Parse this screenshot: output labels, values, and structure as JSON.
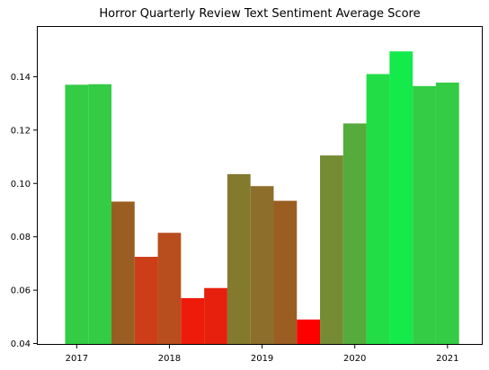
{
  "chart_data": {
    "type": "bar",
    "title": "Horror Quarterly Review Text Sentiment Average Score",
    "xlabel": "",
    "ylabel": "",
    "x_ticks": [
      {
        "label": "2017",
        "value": 2017.0
      },
      {
        "label": "2018",
        "value": 2018.0
      },
      {
        "label": "2019",
        "value": 2019.0
      },
      {
        "label": "2020",
        "value": 2020.0
      },
      {
        "label": "2021",
        "value": 2021.0
      }
    ],
    "y_ticks": [
      0.04,
      0.06,
      0.08,
      0.1,
      0.12,
      0.14
    ],
    "y_tick_labels": [
      "0.04",
      "0.06",
      "0.08",
      "0.10",
      "0.12",
      "0.14"
    ],
    "xlim": [
      2016.57,
      2021.38
    ],
    "ylim": [
      0.0395,
      0.159
    ],
    "bar_width": 0.25,
    "bars": [
      {
        "x": 2017.0,
        "value": 0.137,
        "color": "#33cc44"
      },
      {
        "x": 2017.25,
        "value": 0.1372,
        "color": "#33cc44"
      },
      {
        "x": 2017.5,
        "value": 0.0932,
        "color": "#9a5e22"
      },
      {
        "x": 2017.75,
        "value": 0.0725,
        "color": "#cc3d18"
      },
      {
        "x": 2018.0,
        "value": 0.0815,
        "color": "#b84e1e"
      },
      {
        "x": 2018.25,
        "value": 0.057,
        "color": "#ee1a0a"
      },
      {
        "x": 2018.5,
        "value": 0.0608,
        "color": "#e6200c"
      },
      {
        "x": 2018.75,
        "value": 0.1035,
        "color": "#847a2e"
      },
      {
        "x": 2019.0,
        "value": 0.099,
        "color": "#8d6e2a"
      },
      {
        "x": 2019.25,
        "value": 0.0935,
        "color": "#9a5e22"
      },
      {
        "x": 2019.5,
        "value": 0.049,
        "color": "#ff0000"
      },
      {
        "x": 2019.75,
        "value": 0.1105,
        "color": "#758c34"
      },
      {
        "x": 2020.0,
        "value": 0.1225,
        "color": "#55ab3c"
      },
      {
        "x": 2020.25,
        "value": 0.141,
        "color": "#22dd46"
      },
      {
        "x": 2020.5,
        "value": 0.1495,
        "color": "#14ea4a"
      },
      {
        "x": 2020.75,
        "value": 0.1365,
        "color": "#33cc44"
      },
      {
        "x": 2021.0,
        "value": 0.1378,
        "color": "#33cc44"
      }
    ],
    "grid": false,
    "legend": "none"
  }
}
